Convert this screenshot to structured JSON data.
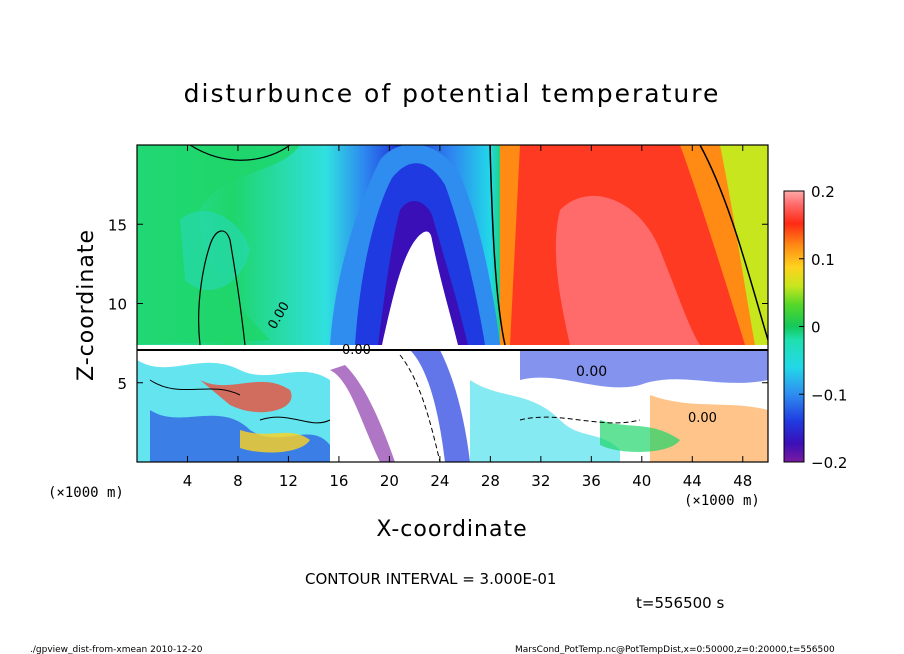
{
  "chart_data": {
    "type": "heatmap",
    "title": "disturbunce of potential temperature",
    "xlabel": "X-coordinate",
    "ylabel": "Z-coordinate",
    "x_unit_label": "(×1000 m)",
    "x_unit_label_right": "(×1000 m)",
    "xlim": [
      0,
      50
    ],
    "ylim": [
      0,
      20
    ],
    "x_ticks": [
      4,
      8,
      12,
      16,
      20,
      24,
      28,
      32,
      36,
      40,
      44,
      48
    ],
    "y_ticks": [
      5,
      10,
      15
    ],
    "colorbar": {
      "range": [
        -0.2,
        0.2
      ],
      "tick_values": [
        0.2,
        0.1,
        0,
        -0.1,
        -0.2
      ],
      "tick_labels": [
        "0.2",
        "0.1",
        "0",
        "−0.1",
        "−0.2"
      ]
    },
    "contour_labels": [
      "0.00",
      "0.00",
      "0.00",
      "0.00"
    ],
    "contour_interval_text": "CONTOUR INTERVAL = 3.000E-01",
    "time_text": "t=556500 s",
    "footer_left": "./gpview_dist-from-xmean  2010-12-20",
    "footer_right": "MarsCond_PotTemp.nc@PotTempDist,x=0:50000,z=0:20000,t=556500",
    "colors": {
      "strong_neg": "#7d0aa8",
      "neg": "#1230d8",
      "neutral": "#1ad66a",
      "pos": "#ff8a1e",
      "strong_pos": "#ff4a4a"
    }
  }
}
